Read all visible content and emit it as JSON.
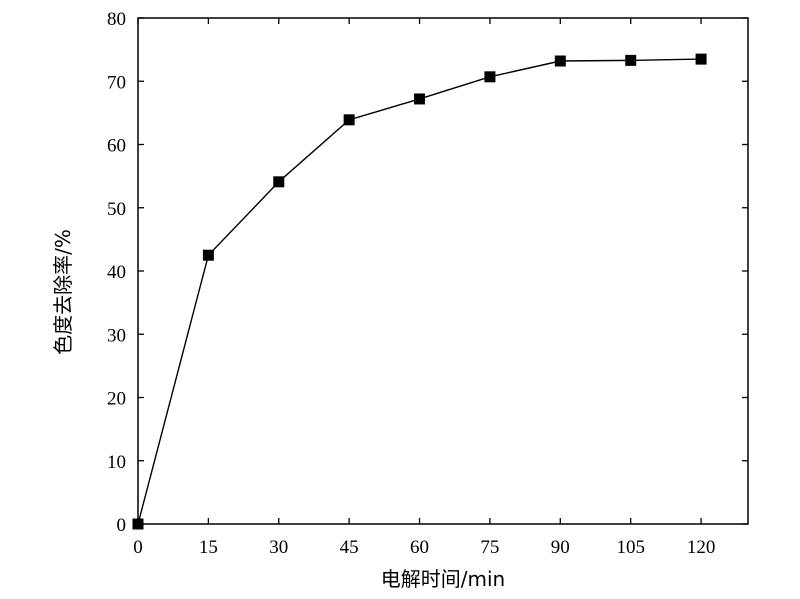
{
  "chart_data": {
    "type": "line",
    "title": "",
    "xlabel": "电解时间/min",
    "ylabel": "色度去除率/%",
    "x": [
      0,
      15,
      30,
      45,
      60,
      75,
      90,
      105,
      120
    ],
    "series": [
      {
        "values": [
          0,
          42.5,
          54.1,
          63.9,
          67.2,
          70.7,
          73.2,
          73.3,
          73.5
        ],
        "color": "#000000",
        "marker": "square"
      }
    ],
    "xlim": [
      0,
      130
    ],
    "ylim": [
      0,
      80
    ],
    "xticks": [
      0,
      15,
      30,
      45,
      60,
      75,
      90,
      105,
      120
    ],
    "yticks": [
      0,
      10,
      20,
      30,
      40,
      50,
      60,
      70,
      80
    ],
    "grid": false,
    "legend": "none"
  }
}
